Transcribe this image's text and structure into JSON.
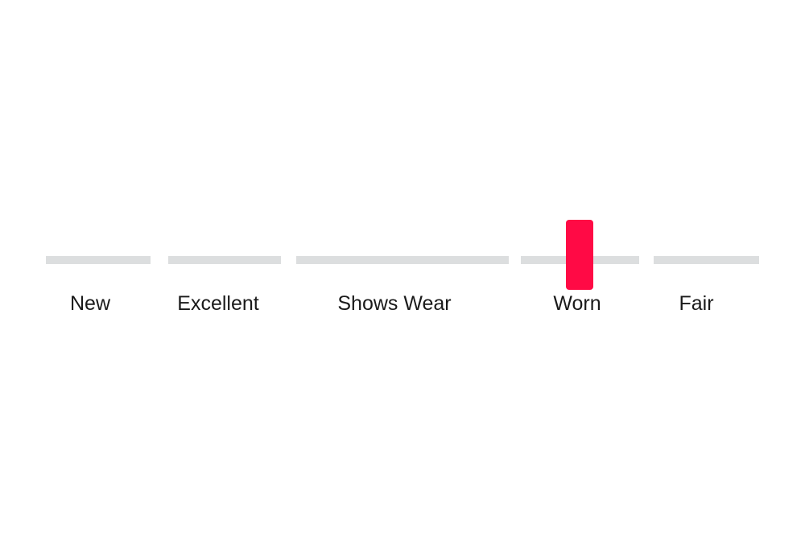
{
  "slider": {
    "options": [
      {
        "label": "New"
      },
      {
        "label": "Excellent"
      },
      {
        "label": "Shows Wear"
      },
      {
        "label": "Worn"
      },
      {
        "label": "Fair"
      }
    ],
    "selected": "Worn",
    "thumb_color": "#ff0a45",
    "track_color": "#dcdedf"
  }
}
